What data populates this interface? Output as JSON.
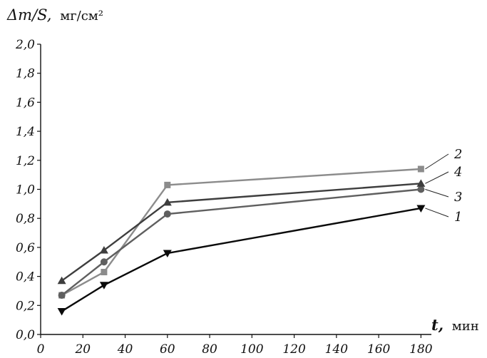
{
  "chart_data": {
    "type": "line",
    "ylabel_var": "Δm/S,",
    "ylabel_unit": "мг/см²",
    "xlabel_var": "t,",
    "xlabel_unit": "мин",
    "xlim": [
      0,
      190
    ],
    "ylim": [
      0,
      2.0
    ],
    "x_ticks": [
      0,
      20,
      40,
      60,
      80,
      100,
      120,
      140,
      160,
      180
    ],
    "x_tick_labels": [
      "0",
      "20",
      "40",
      "60",
      "80",
      "100",
      "120",
      "140",
      "160",
      "180"
    ],
    "y_ticks": [
      0,
      0.2,
      0.4,
      0.6,
      0.8,
      1.0,
      1.2,
      1.4,
      1.6,
      1.8,
      2.0
    ],
    "y_tick_labels": [
      "0,0",
      "0,2",
      "0,4",
      "0,6",
      "0,8",
      "1,0",
      "1,2",
      "1,4",
      "1,6",
      "1,8",
      "2,0"
    ],
    "grid": false,
    "series": [
      {
        "name": "1",
        "marker": "triangle-down",
        "color": "#0a0a0a",
        "x": [
          10,
          30,
          60,
          180
        ],
        "y": [
          0.16,
          0.34,
          0.56,
          0.87
        ]
      },
      {
        "name": "2",
        "marker": "square",
        "color": "#8c8c8c",
        "x": [
          10,
          30,
          60,
          180
        ],
        "y": [
          0.27,
          0.43,
          1.03,
          1.14
        ]
      },
      {
        "name": "3",
        "marker": "circle",
        "color": "#5f5f5f",
        "x": [
          10,
          30,
          60,
          180
        ],
        "y": [
          0.27,
          0.5,
          0.83,
          1.0
        ]
      },
      {
        "name": "4",
        "marker": "triangle-up",
        "color": "#3e3e3e",
        "x": [
          10,
          30,
          60,
          180
        ],
        "y": [
          0.37,
          0.58,
          0.91,
          1.04
        ]
      }
    ]
  }
}
